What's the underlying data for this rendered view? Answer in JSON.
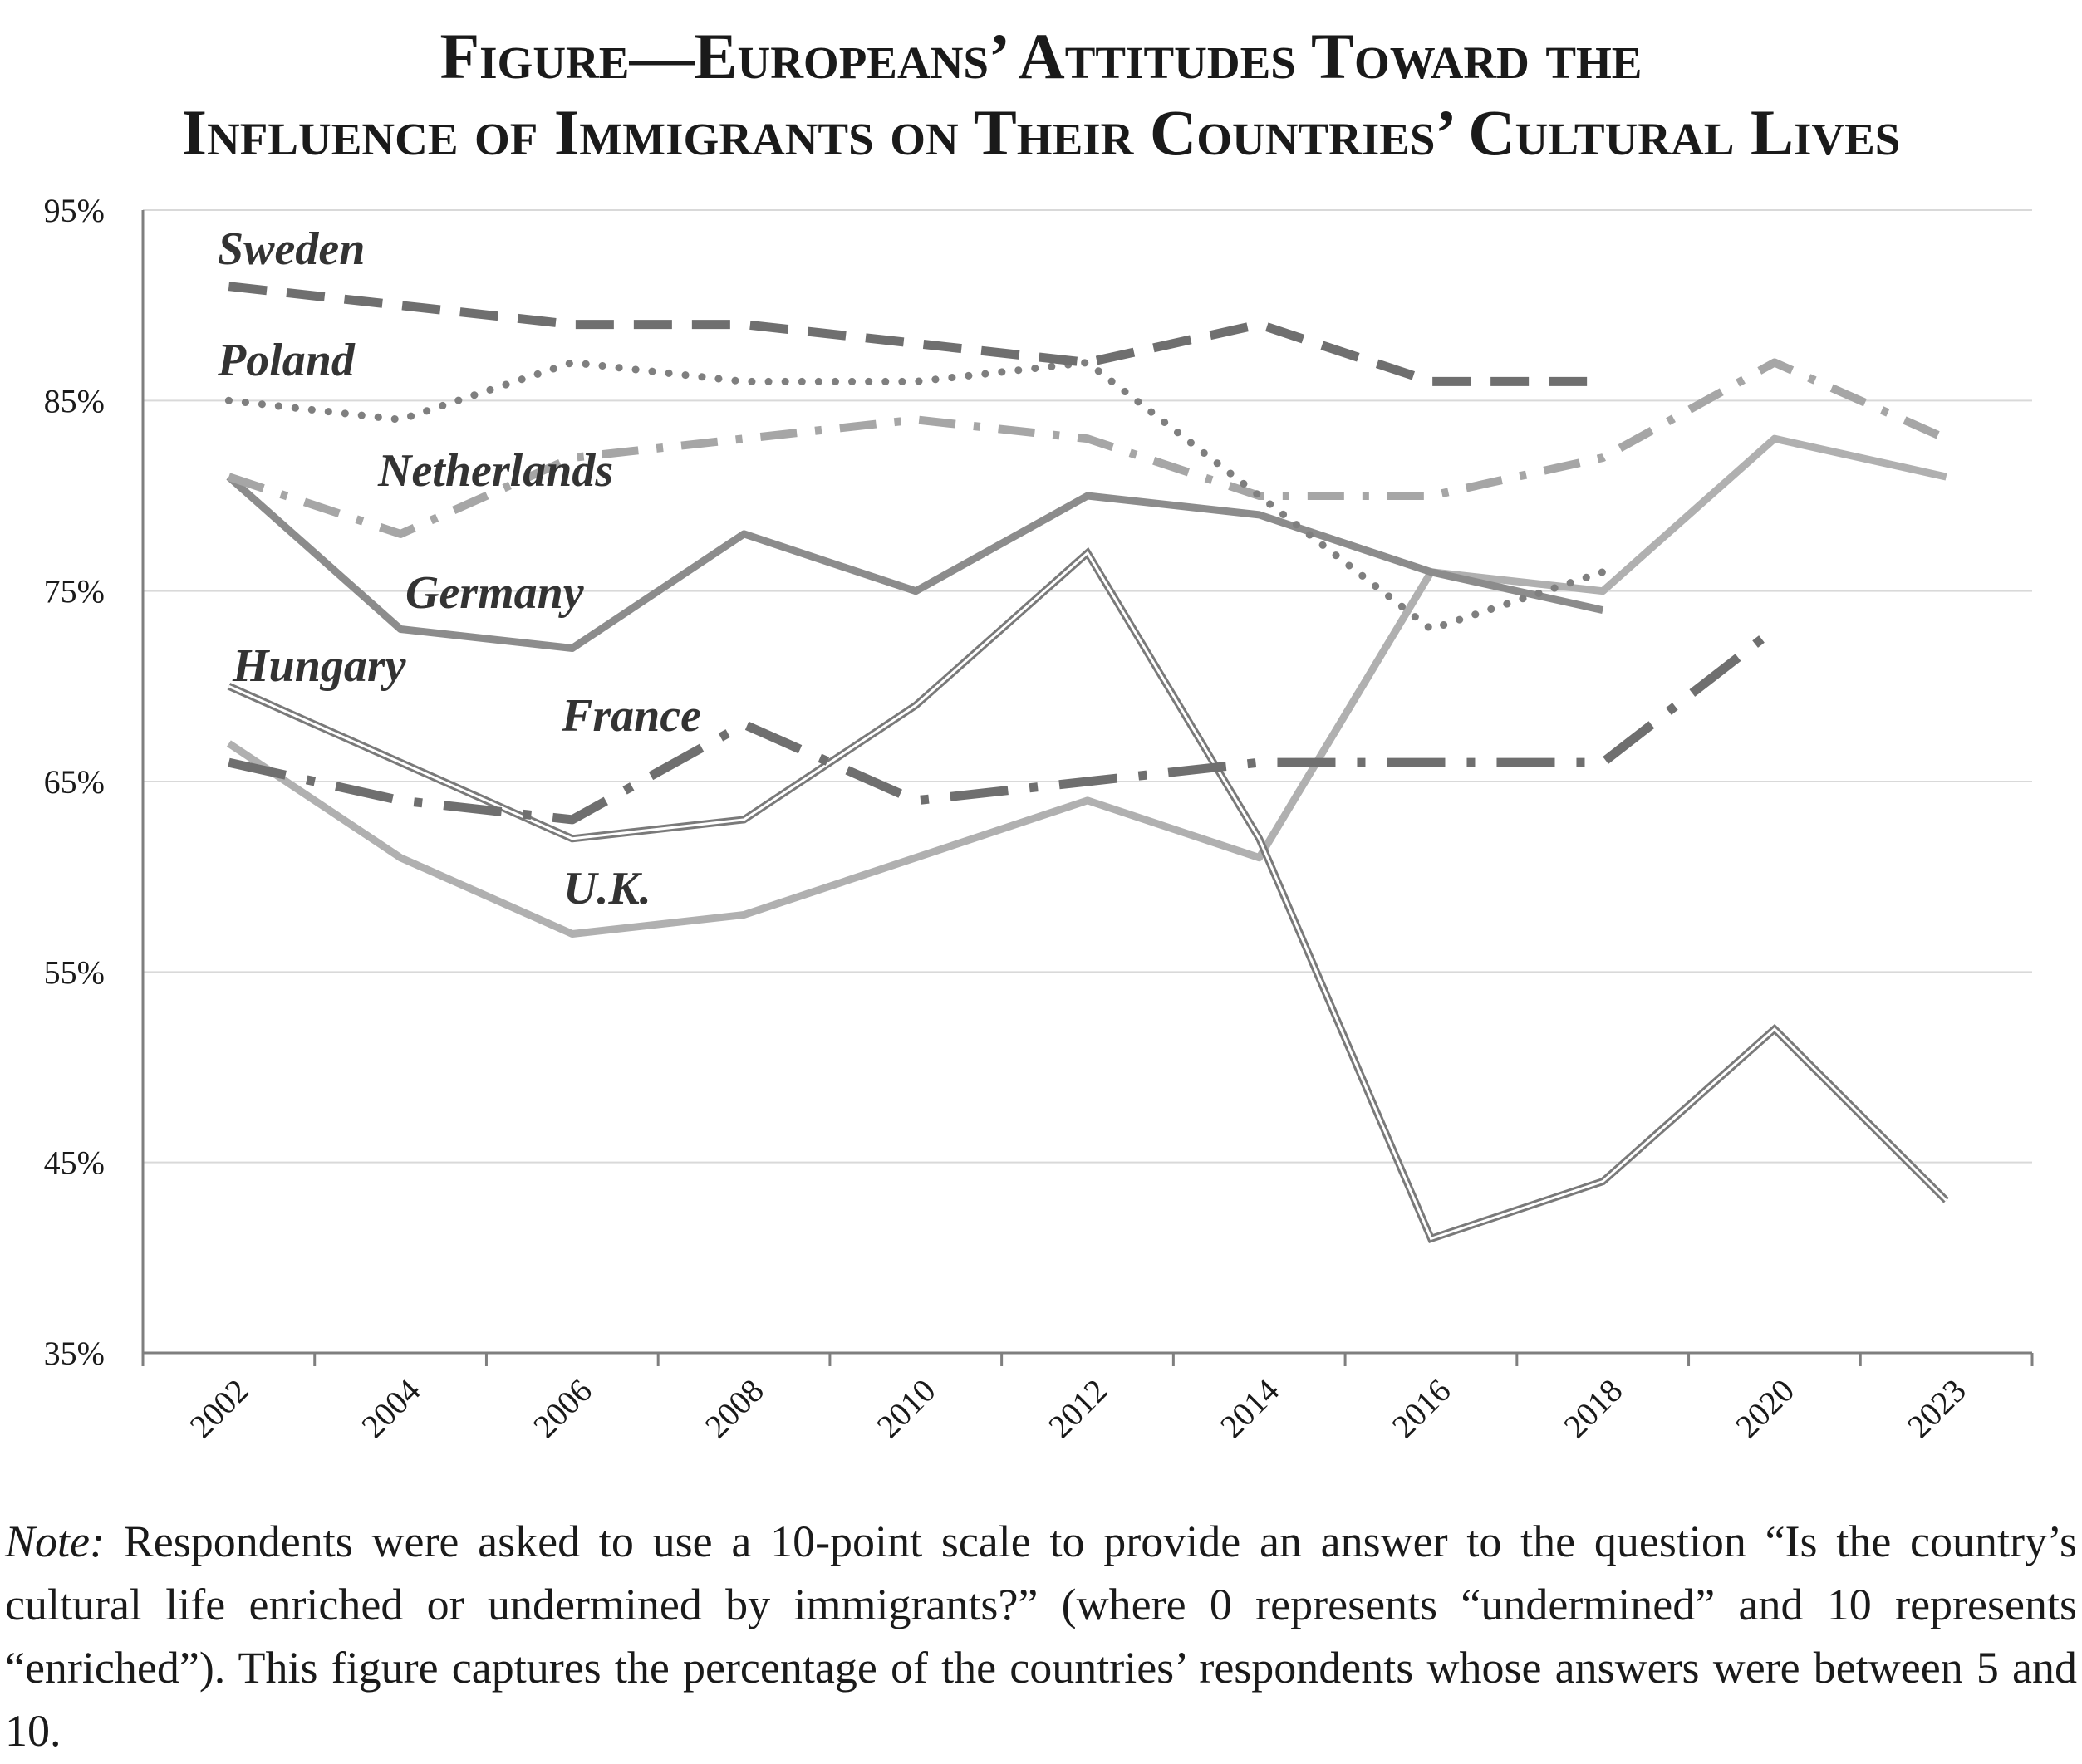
{
  "title_lines": [
    "Figure—Europeans’ Attitudes Toward the",
    "Influence of Immigrants on Their Countries’ Cultural Lives"
  ],
  "note": {
    "label": "Note:",
    "text": "Respondents were asked to use a 10-point scale to provide an answer to the question “Is the country’s cultural life enriched or undermined by immigrants?” (where 0 represents “undermined” and 10 represents “enriched”). This figure captures the percentage of the countries’ respondents whose answers were between 5 and 10."
  },
  "chart_data": {
    "type": "line",
    "title": "Figure—Europeans’ Attitudes Toward the Influence of Immigrants on Their Countries’ Cultural Lives",
    "categories": [
      "2002",
      "2004",
      "2006",
      "2008",
      "2010",
      "2012",
      "2014",
      "2016",
      "2018",
      "2020",
      "2023"
    ],
    "ylim": [
      35,
      95
    ],
    "yticks": [
      35,
      45,
      55,
      65,
      75,
      85,
      95
    ],
    "ytick_labels": [
      "35%",
      "45%",
      "55%",
      "65%",
      "75%",
      "85%",
      "95%"
    ],
    "grid": true,
    "legend": "inline labels",
    "series": [
      {
        "name": "Sweden",
        "values": [
          91,
          90,
          89,
          89,
          88,
          87,
          89,
          86,
          86,
          null,
          null
        ],
        "color": "#6f6f6f",
        "style": "dashed"
      },
      {
        "name": "Poland",
        "values": [
          85,
          84,
          87,
          86,
          86,
          87,
          80,
          73,
          76,
          null,
          null
        ],
        "color": "#7f7f7f",
        "style": "dotted"
      },
      {
        "name": "Netherlands",
        "values": [
          81,
          78,
          82,
          83,
          84,
          83,
          80,
          80,
          82,
          87,
          83
        ],
        "color": "#a6a6a6",
        "style": "dash-dot"
      },
      {
        "name": "Germany",
        "values": [
          81,
          73,
          72,
          78,
          75,
          80,
          79,
          76,
          74,
          null,
          null
        ],
        "color": "#8c8c8c",
        "style": "solid"
      },
      {
        "name": "Hungary",
        "values": [
          70,
          66,
          62,
          63,
          69,
          77,
          62,
          41,
          44,
          52,
          43
        ],
        "color": "#7a7a7a",
        "style": "double"
      },
      {
        "name": "France",
        "values": [
          66,
          64,
          63,
          68,
          64,
          65,
          66,
          66,
          66,
          73,
          null
        ],
        "color": "#6f6f6f",
        "style": "long-dash-dot"
      },
      {
        "name": "U.K.",
        "values": [
          67,
          61,
          57,
          58,
          61,
          64,
          61,
          76,
          75,
          83,
          81
        ],
        "color": "#b0b0b0",
        "style": "solid"
      }
    ]
  }
}
